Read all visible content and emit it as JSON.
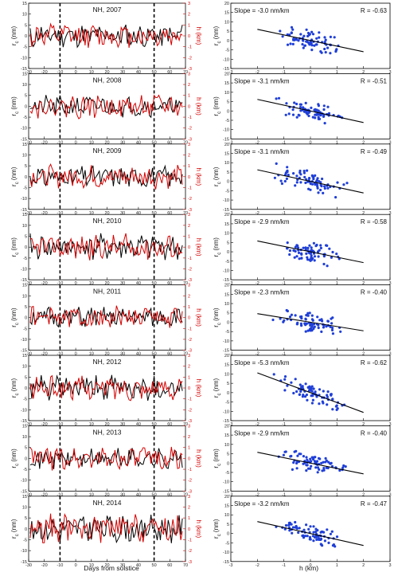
{
  "labels": {
    "left_ylabel_main": "r",
    "left_ylabel_sub": "c",
    "left_ylabel_unit": " (nm)",
    "right_ylabel": "h (km)",
    "scatter_ylabel_main": "r",
    "scatter_ylabel_sub": "c",
    "scatter_ylabel_unit": " (nm)",
    "left_xlabel": "Days from solstice",
    "right_xlabel": "h (km)"
  },
  "colors": {
    "rc": "#000000",
    "h": "#d40000",
    "scatter": "#1f3fd8",
    "fit": "#000000"
  },
  "chart_data": [
    {
      "type": "line",
      "title": "NH, 2007",
      "x_ticks": [
        -30,
        -20,
        -10,
        0,
        10,
        20,
        30,
        40,
        50,
        60,
        70
      ],
      "xlim": [
        -30,
        70
      ],
      "ylim_left": [
        -15,
        15
      ],
      "left_ticks": [
        -15,
        -10,
        -5,
        0,
        5,
        10,
        15
      ],
      "left_inverted": true,
      "ylim_right": [
        -3,
        3
      ],
      "right_ticks": [
        -3,
        -2,
        -1,
        0,
        1,
        2,
        3
      ],
      "vlines": [
        -10,
        50
      ],
      "series": [
        {
          "color": "#000000",
          "seed": 11,
          "amp": 4.5
        },
        {
          "color": "#d40000",
          "seed": 12,
          "amp": 0.9
        }
      ]
    },
    {
      "type": "scatter",
      "slope_text": "Slope = -3.0 nm/km",
      "r_text": "R = -0.63",
      "slope": -3.0,
      "xlim": [
        -3,
        3
      ],
      "x_ticks": [
        -3,
        -2,
        -1,
        0,
        1,
        2,
        3
      ],
      "ylim": [
        -15,
        20
      ],
      "y_ticks": [
        -15,
        -10,
        -5,
        0,
        5,
        10,
        15,
        20
      ],
      "y_inverted": true,
      "fit_x": [
        -2,
        2
      ],
      "seed": 13
    },
    {
      "type": "line",
      "title": "NH, 2008",
      "x_ticks": [
        -30,
        -20,
        -10,
        0,
        10,
        20,
        30,
        40,
        50,
        60,
        70
      ],
      "xlim": [
        -30,
        70
      ],
      "ylim_left": [
        -15,
        15
      ],
      "left_ticks": [
        -15,
        -10,
        -5,
        0,
        5,
        10,
        15
      ],
      "left_inverted": true,
      "ylim_right": [
        -3,
        3
      ],
      "right_ticks": [
        -3,
        -2,
        -1,
        0,
        1,
        2,
        3
      ],
      "vlines": [
        -10,
        50
      ],
      "series": [
        {
          "color": "#000000",
          "seed": 21,
          "amp": 4.0
        },
        {
          "color": "#d40000",
          "seed": 22,
          "amp": 0.9
        }
      ]
    },
    {
      "type": "scatter",
      "slope_text": "Slope = -3.1 nm/km",
      "r_text": "R = -0.51",
      "slope": -3.1,
      "xlim": [
        -3,
        3
      ],
      "x_ticks": [
        -3,
        -2,
        -1,
        0,
        1,
        2,
        3
      ],
      "ylim": [
        -15,
        20
      ],
      "y_ticks": [
        -15,
        -10,
        -5,
        0,
        5,
        10,
        15,
        20
      ],
      "y_inverted": true,
      "fit_x": [
        -2,
        2
      ],
      "seed": 23
    },
    {
      "type": "line",
      "title": "NH, 2009",
      "x_ticks": [
        -30,
        -20,
        -10,
        0,
        10,
        20,
        30,
        40,
        50,
        60,
        70
      ],
      "xlim": [
        -30,
        70
      ],
      "ylim_left": [
        -15,
        15
      ],
      "left_ticks": [
        -15,
        -10,
        -5,
        0,
        5,
        10,
        15
      ],
      "left_inverted": true,
      "ylim_right": [
        -3,
        3
      ],
      "right_ticks": [
        -3,
        -2,
        -1,
        0,
        1,
        2,
        3
      ],
      "vlines": [
        -10,
        50
      ],
      "series": [
        {
          "color": "#000000",
          "seed": 31,
          "amp": 4.2
        },
        {
          "color": "#d40000",
          "seed": 32,
          "amp": 0.9
        }
      ]
    },
    {
      "type": "scatter",
      "slope_text": "Slope = -3.1 nm/km",
      "r_text": "R = -0.49",
      "slope": -3.1,
      "xlim": [
        -3,
        3
      ],
      "x_ticks": [
        -3,
        -2,
        -1,
        0,
        1,
        2,
        3
      ],
      "ylim": [
        -15,
        20
      ],
      "y_ticks": [
        -15,
        -10,
        -5,
        0,
        5,
        10,
        15,
        20
      ],
      "y_inverted": true,
      "fit_x": [
        -2,
        2
      ],
      "seed": 33
    },
    {
      "type": "line",
      "title": "NH, 2010",
      "x_ticks": [
        -30,
        -20,
        -10,
        0,
        10,
        20,
        30,
        40,
        50,
        60,
        70
      ],
      "xlim": [
        -30,
        70
      ],
      "ylim_left": [
        -15,
        15
      ],
      "left_ticks": [
        -15,
        -10,
        -5,
        0,
        5,
        10,
        15
      ],
      "left_inverted": true,
      "ylim_right": [
        -3,
        3
      ],
      "right_ticks": [
        -3,
        -2,
        -1,
        0,
        1,
        2,
        3
      ],
      "vlines": [
        -10,
        50
      ],
      "series": [
        {
          "color": "#000000",
          "seed": 41,
          "amp": 5.0
        },
        {
          "color": "#d40000",
          "seed": 42,
          "amp": 1.0
        }
      ]
    },
    {
      "type": "scatter",
      "slope_text": "Slope = -2.9 nm/km",
      "r_text": "R = -0.58",
      "slope": -2.9,
      "xlim": [
        -3,
        3
      ],
      "x_ticks": [
        -3,
        -2,
        -1,
        0,
        1,
        2,
        3
      ],
      "ylim": [
        -15,
        20
      ],
      "y_ticks": [
        -15,
        -10,
        -5,
        0,
        5,
        10,
        15,
        20
      ],
      "y_inverted": true,
      "fit_x": [
        -2,
        2
      ],
      "seed": 43
    },
    {
      "type": "line",
      "title": "NH, 2011",
      "x_ticks": [
        -30,
        -20,
        -10,
        0,
        10,
        20,
        30,
        40,
        50,
        60,
        70
      ],
      "xlim": [
        -30,
        70
      ],
      "ylim_left": [
        -15,
        15
      ],
      "left_ticks": [
        -15,
        -10,
        -5,
        0,
        5,
        10,
        15
      ],
      "left_inverted": true,
      "ylim_right": [
        -3,
        3
      ],
      "right_ticks": [
        -3,
        -2,
        -1,
        0,
        1,
        2,
        3
      ],
      "vlines": [
        -10,
        50
      ],
      "series": [
        {
          "color": "#000000",
          "seed": 51,
          "amp": 4.0
        },
        {
          "color": "#d40000",
          "seed": 52,
          "amp": 0.9
        }
      ]
    },
    {
      "type": "scatter",
      "slope_text": "Slope = -2.3 nm/km",
      "r_text": "R = -0.40",
      "slope": -2.3,
      "xlim": [
        -3,
        3
      ],
      "x_ticks": [
        -3,
        -2,
        -1,
        0,
        1,
        2,
        3
      ],
      "ylim": [
        -15,
        20
      ],
      "y_ticks": [
        -15,
        -10,
        -5,
        0,
        5,
        10,
        15,
        20
      ],
      "y_inverted": true,
      "fit_x": [
        -2,
        2
      ],
      "seed": 53
    },
    {
      "type": "line",
      "title": "NH, 2012",
      "x_ticks": [
        -30,
        -20,
        -10,
        0,
        10,
        20,
        30,
        40,
        50,
        60,
        70
      ],
      "xlim": [
        -30,
        70
      ],
      "ylim_left": [
        -15,
        15
      ],
      "left_ticks": [
        -15,
        -10,
        -5,
        0,
        5,
        10,
        15
      ],
      "left_inverted": true,
      "ylim_right": [
        -3,
        3
      ],
      "right_ticks": [
        -3,
        -2,
        -1,
        0,
        1,
        2,
        3
      ],
      "vlines": [
        -10,
        50
      ],
      "series": [
        {
          "color": "#000000",
          "seed": 61,
          "amp": 4.8
        },
        {
          "color": "#d40000",
          "seed": 62,
          "amp": 0.9
        }
      ]
    },
    {
      "type": "scatter",
      "slope_text": "Slope = -5.3 nm/km",
      "r_text": "R = -0.62",
      "slope": -5.3,
      "xlim": [
        -3,
        3
      ],
      "x_ticks": [
        -3,
        -2,
        -1,
        0,
        1,
        2,
        3
      ],
      "ylim": [
        -15,
        20
      ],
      "y_ticks": [
        -15,
        -10,
        -5,
        0,
        5,
        10,
        15,
        20
      ],
      "y_inverted": true,
      "fit_x": [
        -2,
        2
      ],
      "seed": 63
    },
    {
      "type": "line",
      "title": "NH, 2013",
      "x_ticks": [
        -30,
        -20,
        -10,
        0,
        10,
        20,
        30,
        40,
        50,
        60,
        70
      ],
      "xlim": [
        -30,
        70
      ],
      "ylim_left": [
        -15,
        15
      ],
      "left_ticks": [
        -15,
        -10,
        -5,
        0,
        5,
        10,
        15
      ],
      "left_inverted": true,
      "ylim_right": [
        -3,
        3
      ],
      "right_ticks": [
        -3,
        -2,
        -1,
        0,
        1,
        2,
        3
      ],
      "vlines": [
        -10,
        50
      ],
      "series": [
        {
          "color": "#000000",
          "seed": 71,
          "amp": 4.0
        },
        {
          "color": "#d40000",
          "seed": 72,
          "amp": 0.9
        }
      ]
    },
    {
      "type": "scatter",
      "slope_text": "Slope = -2.9 nm/km",
      "r_text": "R = -0.40",
      "slope": -2.9,
      "xlim": [
        -3,
        3
      ],
      "x_ticks": [
        -3,
        -2,
        -1,
        0,
        1,
        2,
        3
      ],
      "ylim": [
        -15,
        20
      ],
      "y_ticks": [
        -15,
        -10,
        -5,
        0,
        5,
        10,
        15,
        20
      ],
      "y_inverted": true,
      "fit_x": [
        -2,
        2
      ],
      "seed": 73
    },
    {
      "type": "line",
      "title": "NH, 2014",
      "x_ticks": [
        -30,
        -20,
        -10,
        0,
        10,
        20,
        30,
        40,
        50,
        60,
        70
      ],
      "xlim": [
        -30,
        70
      ],
      "ylim_left": [
        -15,
        15
      ],
      "left_ticks": [
        -15,
        -10,
        -5,
        0,
        5,
        10,
        15
      ],
      "left_inverted": true,
      "ylim_right": [
        -3,
        3
      ],
      "right_ticks": [
        -3,
        -2,
        -1,
        0,
        1,
        2,
        3
      ],
      "vlines": [
        -10,
        50
      ],
      "series": [
        {
          "color": "#000000",
          "seed": 81,
          "amp": 5.2
        },
        {
          "color": "#d40000",
          "seed": 82,
          "amp": 1.1
        }
      ]
    },
    {
      "type": "scatter",
      "slope_text": "Slope = -3.2 nm/km",
      "r_text": "R = -0.47",
      "slope": -3.2,
      "xlim": [
        -3,
        3
      ],
      "x_ticks": [
        -3,
        -2,
        -1,
        0,
        1,
        2,
        3
      ],
      "ylim": [
        -15,
        20
      ],
      "y_ticks": [
        -15,
        -10,
        -5,
        0,
        5,
        10,
        15,
        20
      ],
      "y_inverted": true,
      "fit_x": [
        -2,
        2
      ],
      "seed": 83
    }
  ]
}
